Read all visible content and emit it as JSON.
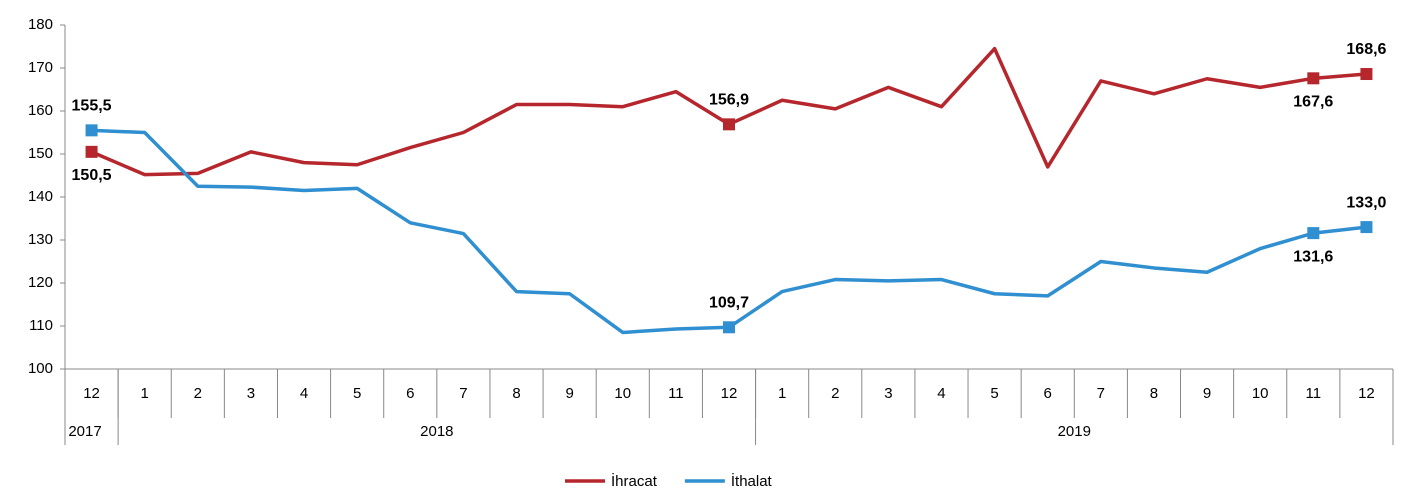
{
  "chart_data": {
    "type": "line",
    "categories": [
      "12",
      "1",
      "2",
      "3",
      "4",
      "5",
      "6",
      "7",
      "8",
      "9",
      "10",
      "11",
      "12",
      "1",
      "2",
      "3",
      "4",
      "5",
      "6",
      "7",
      "8",
      "9",
      "10",
      "11",
      "12"
    ],
    "year_groups": [
      {
        "label": "2017",
        "months": 1
      },
      {
        "label": "2018",
        "months": 12
      },
      {
        "label": "2019",
        "months": 12
      }
    ],
    "series": [
      {
        "name": "İhracat",
        "color": "#b5272d",
        "values": [
          150.5,
          145.2,
          145.5,
          150.5,
          148,
          147.5,
          151.5,
          155,
          161.5,
          161.5,
          161,
          164.5,
          156.9,
          162.5,
          160.5,
          165.5,
          161,
          174.5,
          147,
          167,
          164,
          167.5,
          165.5,
          167.6,
          168.6
        ],
        "value_labels": [
          "150,5",
          null,
          null,
          null,
          null,
          null,
          null,
          null,
          null,
          null,
          null,
          null,
          "156,9",
          null,
          null,
          null,
          null,
          null,
          null,
          null,
          null,
          null,
          null,
          "167,6",
          "168,6"
        ]
      },
      {
        "name": "İthalat",
        "color": "#2f8fd0",
        "values": [
          155.5,
          155,
          142.5,
          142.3,
          141.5,
          142,
          134,
          131.5,
          118,
          117.5,
          108.5,
          109.3,
          109.7,
          118,
          120.8,
          120.5,
          120.8,
          117.5,
          117,
          125,
          123.5,
          122.5,
          128,
          131.6,
          133.0
        ],
        "value_labels": [
          "155,5",
          null,
          null,
          null,
          null,
          null,
          null,
          null,
          null,
          null,
          null,
          null,
          "109,7",
          null,
          null,
          null,
          null,
          null,
          null,
          null,
          null,
          null,
          null,
          "131,6",
          "133,0"
        ]
      }
    ],
    "ylim": [
      100,
      180
    ],
    "yticks": [
      100,
      110,
      120,
      130,
      140,
      150,
      160,
      170,
      180
    ]
  }
}
